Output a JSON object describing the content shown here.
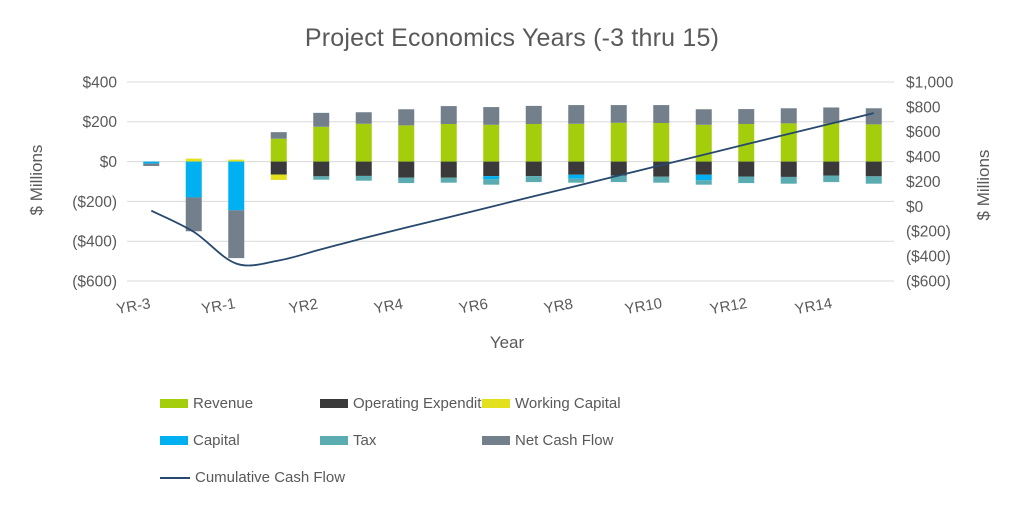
{
  "title": "Project Economics Years (-3 thru 15)",
  "colors": {
    "revenue": "#A4CE0C",
    "operating_expenditure": "#3A3A3A",
    "working_capital": "#E3E01D",
    "capital": "#00B0F0",
    "tax": "#5BACB0",
    "net_cash_flow": "#73808C",
    "cumulative_line": "#27496D",
    "gridline": "#D9D9D9",
    "text": "#595959"
  },
  "axes": {
    "left": {
      "title": "$ Millions",
      "ticks": [
        {
          "label": "$400",
          "value": 400
        },
        {
          "label": "$200",
          "value": 200
        },
        {
          "label": "$0",
          "value": 0
        },
        {
          "label": "($200)",
          "value": -200
        },
        {
          "label": "($400)",
          "value": -400
        },
        {
          "label": "($600)",
          "value": -600
        }
      ],
      "range": [
        -600,
        400
      ]
    },
    "right": {
      "title": "$ Millions",
      "ticks": [
        {
          "label": "$1,000",
          "value": 1000
        },
        {
          "label": "$800",
          "value": 800
        },
        {
          "label": "$600",
          "value": 600
        },
        {
          "label": "$400",
          "value": 400
        },
        {
          "label": "$200",
          "value": 200
        },
        {
          "label": "$0",
          "value": 0
        },
        {
          "label": "($200)",
          "value": -200
        },
        {
          "label": "($400)",
          "value": -400
        },
        {
          "label": "($600)",
          "value": -600
        }
      ],
      "range": [
        -600,
        1000
      ]
    },
    "x": {
      "title": "Year",
      "shown_tick_labels": [
        "YR-3",
        "YR-1",
        "YR2",
        "YR4",
        "YR6",
        "YR8",
        "YR10",
        "YR12",
        "YR14"
      ],
      "shown_tick_indices": [
        0,
        2,
        4,
        6,
        8,
        10,
        12,
        14,
        16
      ]
    }
  },
  "legend": {
    "rows": [
      [
        {
          "label": "Revenue",
          "color_key": "revenue",
          "type": "box"
        },
        {
          "label": "Operating Expenditure",
          "color_key": "operating_expenditure",
          "type": "box"
        },
        {
          "label": "Working Capital",
          "color_key": "working_capital",
          "type": "box"
        }
      ],
      [
        {
          "label": "Capital",
          "color_key": "capital",
          "type": "box"
        },
        {
          "label": "Tax",
          "color_key": "tax",
          "type": "box"
        },
        {
          "label": "Net Cash Flow",
          "color_key": "net_cash_flow",
          "type": "box"
        }
      ],
      [
        {
          "label": "Cumulative Cash Flow",
          "color_key": "cumulative_line",
          "type": "line"
        }
      ]
    ]
  },
  "chart_data": {
    "type": "bar",
    "subtype": "stacked-bar-with-line-overlay",
    "title": "Project Economics Years (-3 thru 15)",
    "xlabel": "Year",
    "ylabel_left": "$ Millions",
    "ylabel_right": "$ Millions",
    "grid": "horizontal",
    "legend_position": "bottom",
    "categories": [
      "YR-3",
      "YR-2",
      "YR-1",
      "YR1",
      "YR2",
      "YR3",
      "YR4",
      "YR5",
      "YR6",
      "YR7",
      "YR8",
      "YR9",
      "YR10",
      "YR11",
      "YR12",
      "YR13",
      "YR14",
      "YR15"
    ],
    "series": [
      {
        "name": "Revenue",
        "color_key": "revenue",
        "axis": "left",
        "values": [
          0,
          0,
          0,
          115,
          175,
          190,
          182,
          189,
          185,
          189,
          190,
          195,
          194,
          185,
          189,
          192,
          192,
          187
        ]
      },
      {
        "name": "Operating Expenditure",
        "color_key": "operating_expenditure",
        "axis": "left",
        "values": [
          0,
          0,
          0,
          -65,
          -74,
          -72,
          -81,
          -81,
          -73,
          -73,
          -66,
          -70,
          -76,
          -66,
          -75,
          -77,
          -70,
          -74
        ]
      },
      {
        "name": "Working Capital",
        "color_key": "working_capital",
        "axis": "left",
        "values": [
          0,
          15,
          10,
          -27,
          0,
          0,
          0,
          0,
          0,
          0,
          0,
          0,
          0,
          0,
          0,
          0,
          0,
          0
        ]
      },
      {
        "name": "Capital",
        "color_key": "capital",
        "axis": "left",
        "values": [
          -10,
          -180,
          -245,
          0,
          0,
          0,
          0,
          0,
          -16,
          0,
          -20,
          0,
          0,
          -28,
          0,
          0,
          0,
          0
        ]
      },
      {
        "name": "Tax",
        "color_key": "tax",
        "axis": "left",
        "values": [
          0,
          0,
          0,
          0,
          -17,
          -24,
          -27,
          -25,
          -27,
          -30,
          -20,
          -33,
          -30,
          -22,
          -33,
          -34,
          -33,
          -37
        ]
      },
      {
        "name": "Net Cash Flow",
        "color_key": "net_cash_flow",
        "axis": "left",
        "values": [
          -12,
          -170,
          -240,
          33,
          70,
          58,
          81,
          90,
          89,
          91,
          94,
          89,
          90,
          78,
          75,
          76,
          80,
          81
        ]
      }
    ],
    "line_series": {
      "name": "Cumulative Cash Flow",
      "color_key": "cumulative_line",
      "axis": "right",
      "smoothed": true,
      "values": [
        -35,
        -205,
        -460,
        -435,
        -345,
        -255,
        -170,
        -88,
        -3,
        81,
        164,
        248,
        332,
        415,
        499,
        583,
        666,
        750
      ]
    },
    "stack_order_positive": [
      "Revenue",
      "Net Cash Flow",
      "Working Capital"
    ],
    "stack_order_negative": [
      "Operating Expenditure",
      "Capital",
      "Tax",
      "Working Capital",
      "Net Cash Flow"
    ],
    "ylim_left": [
      -600,
      400
    ],
    "ylim_right": [
      -600,
      1000
    ]
  }
}
